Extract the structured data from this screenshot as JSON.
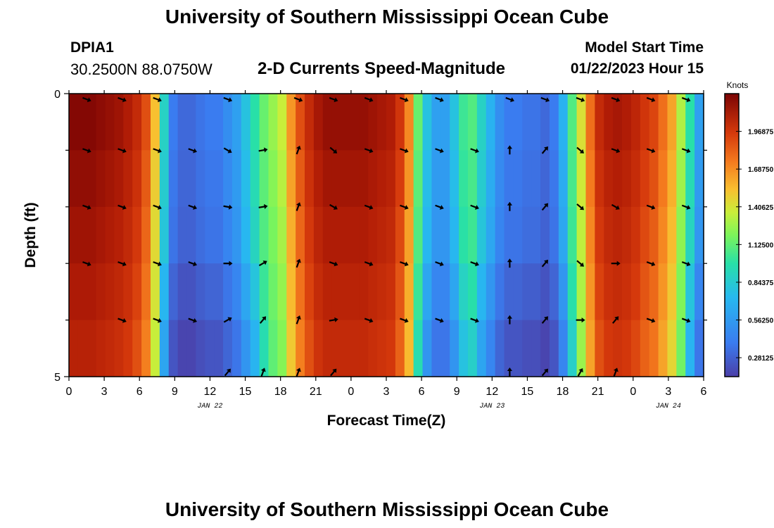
{
  "header": {
    "title": "University of Southern Mississippi Ocean Cube",
    "station_id": "DPIA1",
    "coordinates": "30.2500N  88.0750W",
    "subtitle": "2-D Currents Speed-Magnitude",
    "model_start_label": "Model Start Time",
    "model_start_value": "01/22/2023 Hour 15"
  },
  "footer": {
    "title": "University of Southern Mississippi Ocean Cube"
  },
  "chart_data": {
    "type": "heatmap",
    "title": "2-D Currents Speed-Magnitude",
    "xlabel": "Forecast Time(Z)",
    "ylabel": "Depth (ft)",
    "x_ticks": [
      "0",
      "3",
      "6",
      "9",
      "12",
      "15",
      "18",
      "21",
      "0",
      "3",
      "6",
      "9",
      "12",
      "15",
      "18",
      "21",
      "0",
      "3",
      "6"
    ],
    "date_labels": [
      {
        "label": "JAN 22",
        "tick_index": 4
      },
      {
        "label": "JAN 23",
        "tick_index": 12
      },
      {
        "label": "JAN 24",
        "tick_index": 17
      }
    ],
    "y_ticks": [
      "0",
      "5"
    ],
    "ylim": [
      0,
      5
    ],
    "hours_total": 54,
    "depth_layers": 5,
    "colorbar": {
      "unit": "Knots",
      "min": 0.14,
      "max": 2.25,
      "tick_labels": [
        "1.96875",
        "1.68750",
        "1.40625",
        "1.12500",
        "0.84375",
        "0.56250",
        "0.28125"
      ]
    },
    "speed_profile": [
      2.2,
      2.2,
      2.2,
      2.15,
      2.1,
      2.05,
      1.95,
      1.8,
      1.55,
      1.1,
      0.55,
      0.3,
      0.25,
      0.25,
      0.28,
      0.3,
      0.3,
      0.35,
      0.4,
      0.5,
      0.6,
      0.75,
      0.85,
      0.95,
      1.25,
      1.55,
      1.8,
      2.0,
      2.1,
      2.1,
      2.1,
      2.1,
      2.1,
      2.05,
      2.0,
      1.95,
      1.7,
      1.3,
      0.75,
      0.5,
      0.4,
      0.4,
      0.5,
      0.65,
      0.7,
      0.55,
      0.45,
      0.35,
      0.3,
      0.3,
      0.28,
      0.28,
      0.25,
      0.3,
      0.45,
      0.7,
      1.0,
      1.4,
      1.8,
      1.95,
      2.0,
      1.95,
      1.85,
      1.7,
      1.6,
      1.4,
      1.2,
      0.9,
      0.6,
      0.4
    ],
    "arrow_directions_deg": [
      [
        110,
        110,
        110,
        null,
        110,
        null,
        110,
        110,
        110,
        110,
        110,
        null,
        110,
        110,
        110,
        110,
        110,
        110
      ],
      [
        110,
        110,
        110,
        110,
        120,
        80,
        20,
        130,
        110,
        110,
        110,
        110,
        0,
        40,
        130,
        110,
        110,
        110
      ],
      [
        110,
        110,
        110,
        110,
        100,
        80,
        20,
        120,
        110,
        110,
        110,
        110,
        0,
        40,
        130,
        120,
        110,
        110
      ],
      [
        110,
        110,
        110,
        110,
        90,
        60,
        20,
        110,
        110,
        110,
        110,
        110,
        0,
        40,
        130,
        90,
        110,
        110
      ],
      [
        null,
        110,
        110,
        110,
        60,
        40,
        20,
        80,
        110,
        110,
        110,
        110,
        0,
        40,
        90,
        40,
        110,
        110
      ],
      [
        null,
        null,
        null,
        null,
        40,
        20,
        20,
        40,
        null,
        null,
        null,
        null,
        0,
        40,
        30,
        20,
        null,
        null
      ]
    ]
  }
}
